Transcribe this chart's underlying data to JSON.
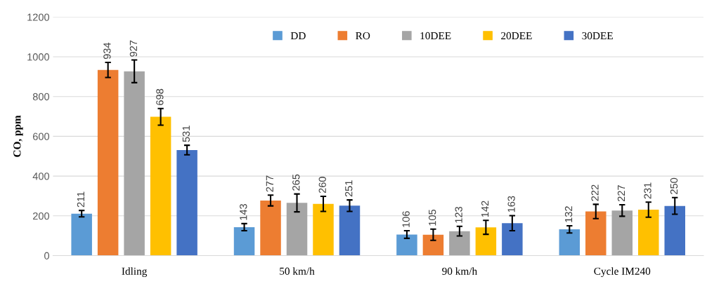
{
  "chart_data": {
    "type": "bar",
    "ylabel": "CO, ppm",
    "categories": [
      "Idling",
      "50 km/h",
      "90 km/h",
      "Cycle IM240"
    ],
    "series": [
      {
        "name": "DD",
        "color": "#5b9bd5",
        "values": [
          211,
          143,
          106,
          132
        ],
        "errors": [
          16,
          18,
          19,
          18
        ]
      },
      {
        "name": "RO",
        "color": "#ed7d31",
        "values": [
          934,
          277,
          105,
          222
        ],
        "errors": [
          38,
          27,
          28,
          36
        ]
      },
      {
        "name": "10DEE",
        "color": "#a5a5a5",
        "values": [
          927,
          265,
          123,
          227
        ],
        "errors": [
          57,
          45,
          24,
          29
        ]
      },
      {
        "name": "20DEE",
        "color": "#ffc000",
        "values": [
          698,
          260,
          142,
          231
        ],
        "errors": [
          42,
          38,
          35,
          38
        ]
      },
      {
        "name": "30DEE",
        "color": "#4472c4",
        "values": [
          531,
          251,
          163,
          250
        ],
        "errors": [
          24,
          29,
          38,
          42
        ]
      }
    ],
    "ylim": [
      0,
      1200
    ],
    "yticks": [
      0,
      200,
      400,
      600,
      800,
      1000,
      1200
    ],
    "grid": "y",
    "legend": "top",
    "data_labels": true
  }
}
